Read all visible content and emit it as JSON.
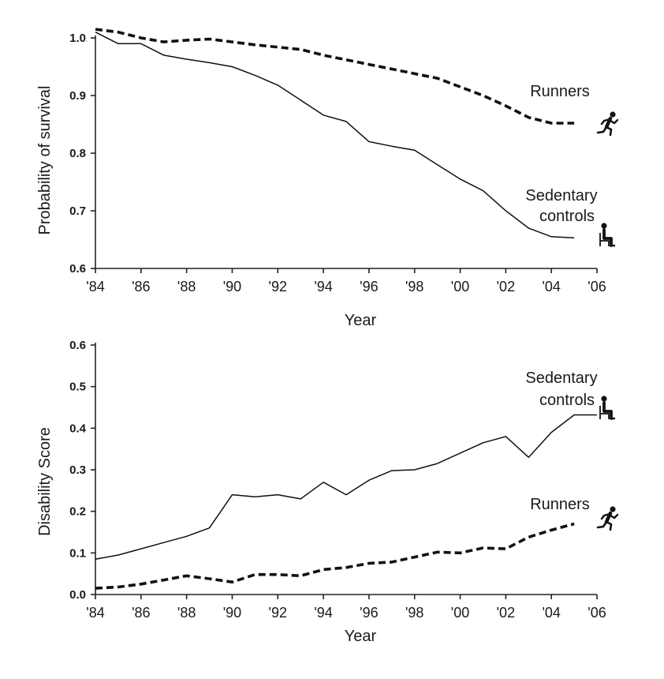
{
  "chart_data": [
    {
      "type": "line",
      "title": "",
      "xlabel": "Year",
      "ylabel": "Probability of survival",
      "xlim": [
        1984,
        2006
      ],
      "ylim": [
        0.6,
        1.0
      ],
      "y_ticks": [
        0.6,
        0.7,
        0.8,
        0.9,
        1.0
      ],
      "y_tick_labels": [
        "0.6",
        "0.7",
        "0.8",
        "0.9",
        "1.0"
      ],
      "x_ticks": [
        1984,
        1986,
        1988,
        1990,
        1992,
        1994,
        1996,
        1998,
        2000,
        2002,
        2004,
        2006
      ],
      "x_tick_labels": [
        "'84",
        "'86",
        "'88",
        "'90",
        "'92",
        "'94",
        "'96",
        "'98",
        "'00",
        "'02",
        "'04",
        "'06"
      ],
      "grid": false,
      "series": [
        {
          "name": "Runners",
          "style": "dashed",
          "icon": "runner-icon",
          "x": [
            1984.0,
            1985.0,
            1986.0,
            1987.0,
            1988.0,
            1989.0,
            1990.0,
            1991.0,
            1992.0,
            1993.0,
            1994.0,
            1995.0,
            1996.0,
            1997.0,
            1998.0,
            1999.0,
            2000.0,
            2001.0,
            2002.0,
            2003.0,
            2004.0,
            2005.0
          ],
          "values": [
            1.015,
            1.01,
            1.0,
            0.993,
            0.996,
            0.998,
            0.993,
            0.988,
            0.984,
            0.98,
            0.97,
            0.962,
            0.954,
            0.946,
            0.938,
            0.93,
            0.915,
            0.9,
            0.882,
            0.862,
            0.852,
            0.852
          ]
        },
        {
          "name": "Sedentary controls",
          "style": "solid",
          "icon": "seated-person-icon",
          "x": [
            1984.0,
            1985.0,
            1986.0,
            1987.0,
            1988.0,
            1989.0,
            1990.0,
            1991.0,
            1992.0,
            1993.0,
            1994.0,
            1995.0,
            1996.0,
            1997.0,
            1998.0,
            1999.0,
            2000.0,
            2001.0,
            2002.0,
            2003.0,
            2004.0,
            2005.0
          ],
          "values": [
            1.01,
            0.99,
            0.99,
            0.97,
            0.963,
            0.957,
            0.95,
            0.935,
            0.918,
            0.892,
            0.866,
            0.855,
            0.82,
            0.812,
            0.805,
            0.78,
            0.755,
            0.735,
            0.7,
            0.67,
            0.655,
            0.653
          ]
        }
      ],
      "series_labels": {
        "runners": "Runners",
        "sedentary_line1": "Sedentary",
        "sedentary_line2": "controls"
      }
    },
    {
      "type": "line",
      "title": "",
      "xlabel": "Year",
      "ylabel": "Disability Score",
      "xlim": [
        1984,
        2006
      ],
      "ylim": [
        0.0,
        0.6
      ],
      "y_ticks": [
        0.0,
        0.1,
        0.2,
        0.3,
        0.4,
        0.5,
        0.6
      ],
      "y_tick_labels": [
        "0.0",
        "0.1",
        "0.2",
        "0.3",
        "0.4",
        "0.5",
        "0.6"
      ],
      "x_ticks": [
        1984,
        1986,
        1988,
        1990,
        1992,
        1994,
        1996,
        1998,
        2000,
        2002,
        2004,
        2006
      ],
      "x_tick_labels": [
        "'84",
        "'86",
        "'88",
        "'90",
        "'92",
        "'94",
        "'96",
        "'98",
        "'00",
        "'02",
        "'04",
        "'06"
      ],
      "grid": false,
      "series": [
        {
          "name": "Sedentary controls",
          "style": "solid",
          "icon": "seated-person-icon",
          "x": [
            1984.0,
            1985.0,
            1986.0,
            1987.0,
            1988.0,
            1989.0,
            1990.0,
            1991.0,
            1992.0,
            1993.0,
            1994.0,
            1995.0,
            1996.0,
            1997.0,
            1998.0,
            1999.0,
            2000.0,
            2001.0,
            2002.0,
            2003.0,
            2004.0,
            2005.0,
            2006.0
          ],
          "values": [
            0.085,
            0.095,
            0.11,
            0.125,
            0.14,
            0.16,
            0.24,
            0.235,
            0.24,
            0.23,
            0.27,
            0.24,
            0.275,
            0.298,
            0.3,
            0.315,
            0.34,
            0.365,
            0.38,
            0.33,
            0.39,
            0.432,
            0.432
          ]
        },
        {
          "name": "Runners",
          "style": "dashed",
          "icon": "runner-icon",
          "x": [
            1984.0,
            1985.0,
            1986.0,
            1987.0,
            1988.0,
            1989.0,
            1990.0,
            1991.0,
            1992.0,
            1993.0,
            1994.0,
            1995.0,
            1996.0,
            1997.0,
            1998.0,
            1999.0,
            2000.0,
            2001.0,
            2002.0,
            2003.0,
            2004.0,
            2005.0
          ],
          "values": [
            0.015,
            0.018,
            0.025,
            0.035,
            0.045,
            0.038,
            0.03,
            0.048,
            0.048,
            0.045,
            0.06,
            0.065,
            0.075,
            0.078,
            0.09,
            0.102,
            0.1,
            0.112,
            0.11,
            0.138,
            0.155,
            0.17
          ]
        }
      ],
      "series_labels": {
        "runners": "Runners",
        "sedentary_line1": "Sedentary",
        "sedentary_line2": "controls"
      }
    }
  ]
}
